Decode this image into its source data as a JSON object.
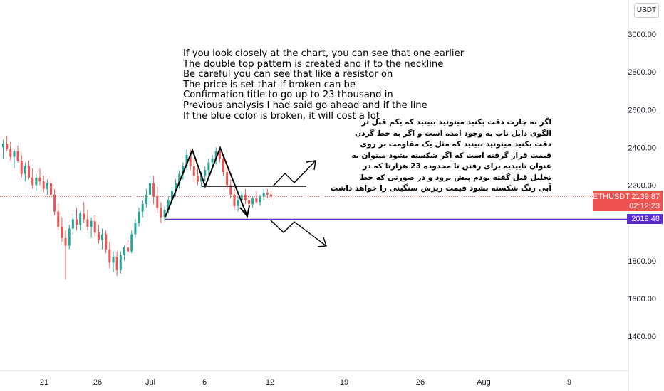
{
  "currency_button": "USDT",
  "colors": {
    "up": "#26a69a",
    "down": "#ef5350",
    "support": "#5b2bd6",
    "price_line": "#ef5350",
    "drawing": "#000000"
  },
  "chart_data": {
    "type": "candlestick",
    "symbol": "ETHUSDT",
    "y_ticks": [
      "3000.00",
      "2800.00",
      "2600.00",
      "2400.00",
      "2200.00",
      "1800.00",
      "1600.00",
      "1400.00"
    ],
    "x_ticks": [
      "21",
      "26",
      "Jul",
      "6",
      "12",
      "19",
      "26",
      "Aug",
      "9"
    ],
    "last_price": "2139.87",
    "countdown": "02:12:23",
    "support_level": "2019.48",
    "candles": [
      {
        "o": 2400,
        "h": 2440,
        "l": 2340,
        "c": 2420
      },
      {
        "o": 2420,
        "h": 2460,
        "l": 2380,
        "c": 2390
      },
      {
        "o": 2390,
        "h": 2430,
        "l": 2330,
        "c": 2350
      },
      {
        "o": 2350,
        "h": 2390,
        "l": 2290,
        "c": 2380
      },
      {
        "o": 2380,
        "h": 2410,
        "l": 2320,
        "c": 2330
      },
      {
        "o": 2330,
        "h": 2360,
        "l": 2240,
        "c": 2260
      },
      {
        "o": 2260,
        "h": 2320,
        "l": 2220,
        "c": 2300
      },
      {
        "o": 2300,
        "h": 2330,
        "l": 2230,
        "c": 2240
      },
      {
        "o": 2240,
        "h": 2290,
        "l": 2180,
        "c": 2200
      },
      {
        "o": 2200,
        "h": 2260,
        "l": 2170,
        "c": 2240
      },
      {
        "o": 2240,
        "h": 2290,
        "l": 2200,
        "c": 2220
      },
      {
        "o": 2220,
        "h": 2250,
        "l": 2160,
        "c": 2180
      },
      {
        "o": 2180,
        "h": 2230,
        "l": 2150,
        "c": 2210
      },
      {
        "o": 2210,
        "h": 2240,
        "l": 2130,
        "c": 2150
      },
      {
        "o": 2150,
        "h": 2180,
        "l": 2040,
        "c": 2060
      },
      {
        "o": 2060,
        "h": 2100,
        "l": 1960,
        "c": 1980
      },
      {
        "o": 1980,
        "h": 2030,
        "l": 1900,
        "c": 1920
      },
      {
        "o": 1920,
        "h": 1960,
        "l": 1700,
        "c": 1880
      },
      {
        "o": 1880,
        "h": 1990,
        "l": 1860,
        "c": 1970
      },
      {
        "o": 1970,
        "h": 2050,
        "l": 1940,
        "c": 2020
      },
      {
        "o": 2020,
        "h": 2080,
        "l": 1960,
        "c": 1990
      },
      {
        "o": 1990,
        "h": 2060,
        "l": 1960,
        "c": 2050
      },
      {
        "o": 2050,
        "h": 2110,
        "l": 2000,
        "c": 2020
      },
      {
        "o": 2020,
        "h": 2070,
        "l": 1960,
        "c": 1980
      },
      {
        "o": 1980,
        "h": 2030,
        "l": 1920,
        "c": 2010
      },
      {
        "o": 2010,
        "h": 2040,
        "l": 1930,
        "c": 1950
      },
      {
        "o": 1950,
        "h": 1990,
        "l": 1890,
        "c": 1910
      },
      {
        "o": 1910,
        "h": 1970,
        "l": 1860,
        "c": 1940
      },
      {
        "o": 1940,
        "h": 1960,
        "l": 1840,
        "c": 1860
      },
      {
        "o": 1860,
        "h": 1900,
        "l": 1760,
        "c": 1790
      },
      {
        "o": 1790,
        "h": 1850,
        "l": 1740,
        "c": 1820
      },
      {
        "o": 1820,
        "h": 1850,
        "l": 1720,
        "c": 1750
      },
      {
        "o": 1750,
        "h": 1850,
        "l": 1730,
        "c": 1830
      },
      {
        "o": 1830,
        "h": 1880,
        "l": 1800,
        "c": 1870
      },
      {
        "o": 1870,
        "h": 1910,
        "l": 1840,
        "c": 1850
      },
      {
        "o": 1850,
        "h": 1960,
        "l": 1840,
        "c": 1940
      },
      {
        "o": 1940,
        "h": 2020,
        "l": 1920,
        "c": 2000
      },
      {
        "o": 2000,
        "h": 2080,
        "l": 1980,
        "c": 2060
      },
      {
        "o": 2060,
        "h": 2120,
        "l": 2030,
        "c": 2100
      },
      {
        "o": 2100,
        "h": 2180,
        "l": 2080,
        "c": 2150
      },
      {
        "o": 2150,
        "h": 2240,
        "l": 2120,
        "c": 2210
      },
      {
        "o": 2210,
        "h": 2250,
        "l": 2100,
        "c": 2140
      },
      {
        "o": 2140,
        "h": 2190,
        "l": 2050,
        "c": 2080
      },
      {
        "o": 2080,
        "h": 2110,
        "l": 2000,
        "c": 2030
      },
      {
        "o": 2030,
        "h": 2090,
        "l": 2010,
        "c": 2070
      },
      {
        "o": 2070,
        "h": 2140,
        "l": 2050,
        "c": 2120
      },
      {
        "o": 2120,
        "h": 2190,
        "l": 2100,
        "c": 2170
      },
      {
        "o": 2170,
        "h": 2230,
        "l": 2140,
        "c": 2210
      },
      {
        "o": 2210,
        "h": 2280,
        "l": 2180,
        "c": 2260
      },
      {
        "o": 2260,
        "h": 2320,
        "l": 2230,
        "c": 2300
      },
      {
        "o": 2300,
        "h": 2390,
        "l": 2280,
        "c": 2360
      },
      {
        "o": 2360,
        "h": 2390,
        "l": 2280,
        "c": 2300
      },
      {
        "o": 2300,
        "h": 2340,
        "l": 2220,
        "c": 2250
      },
      {
        "o": 2250,
        "h": 2290,
        "l": 2200,
        "c": 2220
      },
      {
        "o": 2220,
        "h": 2270,
        "l": 2190,
        "c": 2250
      },
      {
        "o": 2250,
        "h": 2300,
        "l": 2220,
        "c": 2280
      },
      {
        "o": 2280,
        "h": 2340,
        "l": 2250,
        "c": 2320
      },
      {
        "o": 2320,
        "h": 2360,
        "l": 2290,
        "c": 2340
      },
      {
        "o": 2340,
        "h": 2400,
        "l": 2310,
        "c": 2380
      },
      {
        "o": 2380,
        "h": 2400,
        "l": 2320,
        "c": 2340
      },
      {
        "o": 2340,
        "h": 2360,
        "l": 2250,
        "c": 2270
      },
      {
        "o": 2270,
        "h": 2300,
        "l": 2180,
        "c": 2200
      },
      {
        "o": 2200,
        "h": 2230,
        "l": 2130,
        "c": 2150
      },
      {
        "o": 2150,
        "h": 2180,
        "l": 2070,
        "c": 2090
      },
      {
        "o": 2090,
        "h": 2140,
        "l": 2060,
        "c": 2120
      },
      {
        "o": 2120,
        "h": 2170,
        "l": 2090,
        "c": 2150
      },
      {
        "o": 2150,
        "h": 2180,
        "l": 2100,
        "c": 2120
      },
      {
        "o": 2120,
        "h": 2150,
        "l": 2080,
        "c": 2100
      },
      {
        "o": 2100,
        "h": 2140,
        "l": 2080,
        "c": 2130
      },
      {
        "o": 2130,
        "h": 2170,
        "l": 2100,
        "c": 2110
      },
      {
        "o": 2110,
        "h": 2150,
        "l": 2090,
        "c": 2140
      },
      {
        "o": 2140,
        "h": 2180,
        "l": 2120,
        "c": 2160
      },
      {
        "o": 2160,
        "h": 2180,
        "l": 2130,
        "c": 2150
      },
      {
        "o": 2150,
        "h": 2170,
        "l": 2120,
        "c": 2140
      }
    ],
    "annotation_en": [
      "If you look closely at the chart, you can see that one earlier",
      "The double top pattern is created and if to the neckline",
      "Be careful you can see that like a resistor on",
      "The price is set that if broken can be",
      "Confirmation title to go up to 23 thousand in",
      "Previous analysis I had said go ahead and if the line",
      "If the blue color is broken, it will cost a lot"
    ],
    "annotation_fa": [
      "اگر به چارت دقت بکنید میتونید ببینید که یکم قبل تر",
      "الگوی دابل تاپ به وجود امده است و اگر به خط گردن",
      "دقت بکنید میتونید ببینید که مثل یک مقاومت بر روی",
      "قیمت قرار گرفته است که اگر شکسته بشود میتوان به",
      "عنوان تاییدیه برای رفتن تا محدوده 23 هزارتا که در",
      "تحلیل قبل گفته بودم پیش برود و در صورتی که خط",
      "آبی رنگ شکسته بشود قیمت ریزش سنگینی را خواهد داشت"
    ]
  }
}
